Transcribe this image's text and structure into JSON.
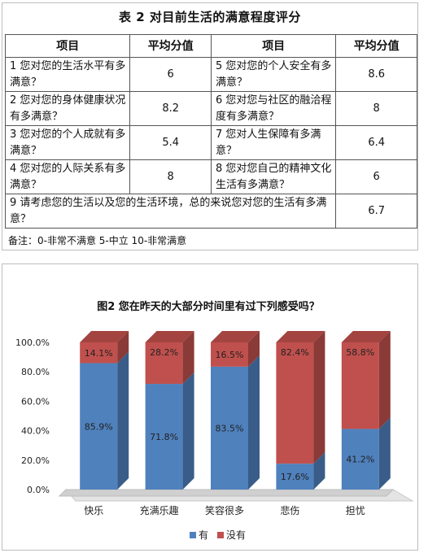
{
  "table": {
    "title": "表 2 对目前生活的满意程度评分",
    "headers": [
      "项目",
      "平均分值",
      "项目",
      "平均分值"
    ],
    "rows": [
      {
        "item1": "1 您对您的生活水平有多满意？",
        "val1": "6",
        "item2": "5 您对您的个人安全有多满意？",
        "val2": "8.6"
      },
      {
        "item1": "2 您对您的身体健康状况有多满意？",
        "val1": "8.2",
        "item2": "6 您对您与社区的融洽程度有多满意？",
        "val2": "8"
      },
      {
        "item1": "3 您对您的个人成就有多满意？",
        "val1": "5.4",
        "item2": "7 您对人生保障有多满意？",
        "val2": "6.4"
      },
      {
        "item1": "4 您对您的人际关系有多满意？",
        "val1": "8",
        "item2": "8 您对您自己的精神文化生活有多满意？",
        "val2": "6"
      }
    ],
    "last_row": {
      "item": "9 请考虑您的生活以及您的生活环境，总的来说您对您的生活有多满意？",
      "val": "6.7"
    },
    "note": "备注：0-非常不满意   5-中立   10-非常满意"
  },
  "chart_data": {
    "type": "bar",
    "stacked": true,
    "three_d": true,
    "title": "图2 您在昨天的大部分时间里有过下列感受吗？",
    "categories": [
      "快乐",
      "充满乐趣",
      "笑容很多",
      "悲伤",
      "担忧"
    ],
    "series": [
      {
        "name": "有",
        "values": [
          85.9,
          71.8,
          83.5,
          17.6,
          41.2
        ],
        "labels": [
          "85.9%",
          "71.8%",
          "83.5%",
          "17.6%",
          "41.2%"
        ],
        "color": "#4F81BD"
      },
      {
        "name": "没有",
        "values": [
          14.1,
          28.2,
          16.5,
          82.4,
          58.8
        ],
        "labels": [
          "14.1%",
          "28.2%",
          "16.5%",
          "82.4%",
          "58.8%"
        ],
        "color": "#C0504D"
      }
    ],
    "ylim": [
      0,
      100
    ],
    "yticks": [
      "0.0%",
      "20.0%",
      "40.0%",
      "60.0%",
      "80.0%",
      "100.0%"
    ],
    "grid": false,
    "legend": "bottom"
  }
}
